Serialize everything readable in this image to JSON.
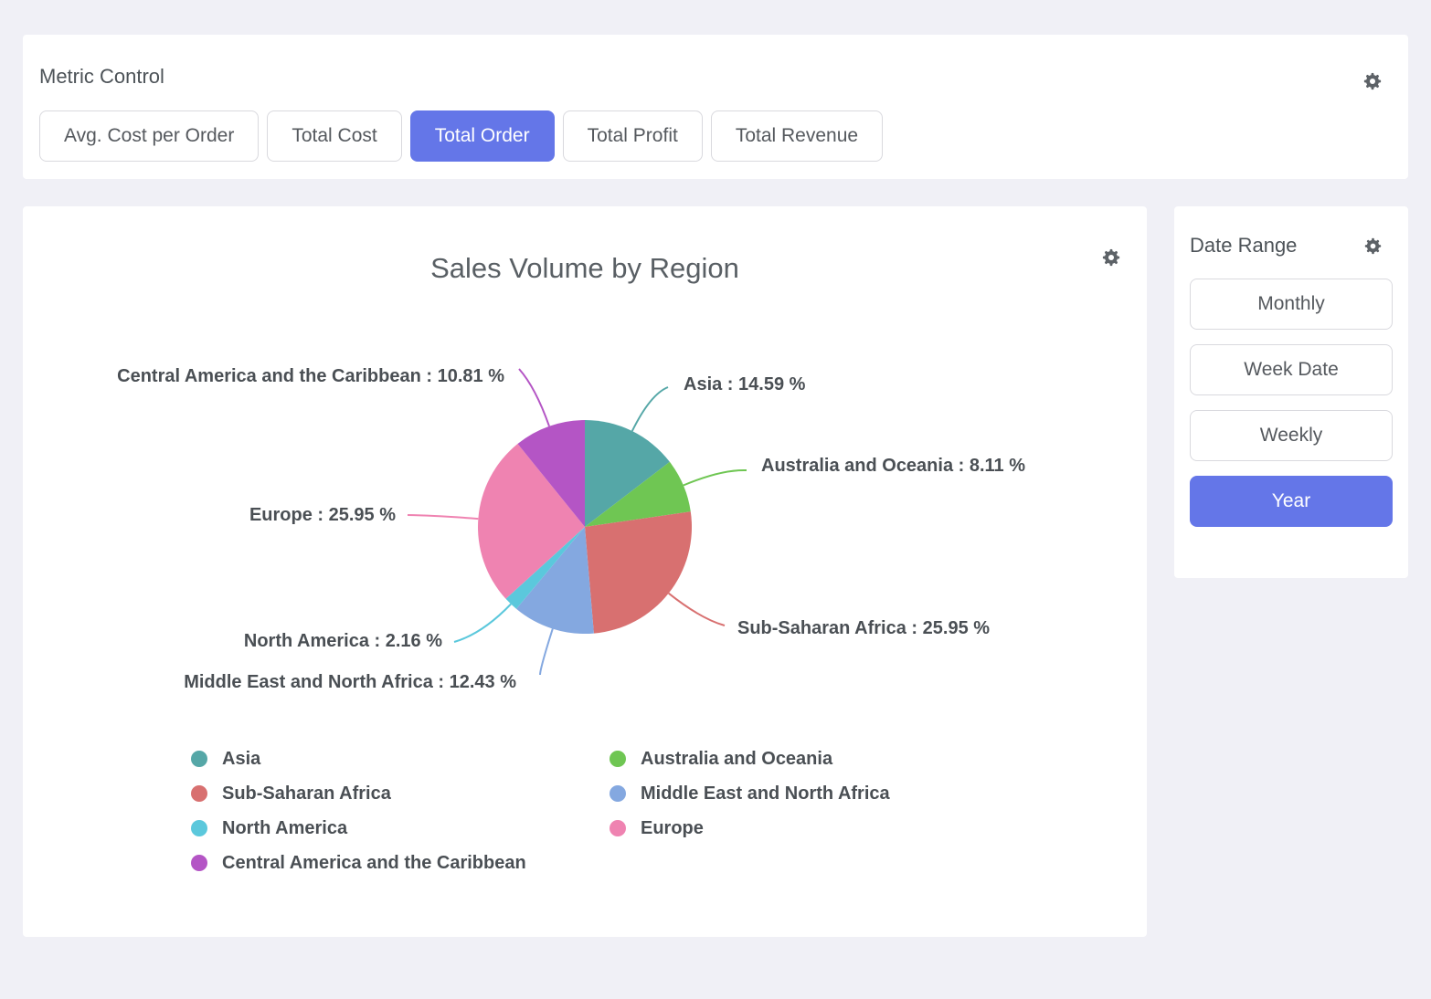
{
  "theme": {
    "accent": "#6476e8",
    "page_bg": "#f0f0f6",
    "panel_bg": "#ffffff",
    "text": "#55595e"
  },
  "metric_control": {
    "title": "Metric Control",
    "settings_icon": "gear-icon",
    "buttons": [
      {
        "label": "Avg. Cost per Order",
        "selected": false
      },
      {
        "label": "Total Cost",
        "selected": false
      },
      {
        "label": "Total Order",
        "selected": true
      },
      {
        "label": "Total Profit",
        "selected": false
      },
      {
        "label": "Total Revenue",
        "selected": false
      }
    ]
  },
  "date_range": {
    "title": "Date Range",
    "settings_icon": "gear-icon",
    "buttons": [
      {
        "label": "Monthly",
        "selected": false
      },
      {
        "label": "Week Date",
        "selected": false
      },
      {
        "label": "Weekly",
        "selected": false
      },
      {
        "label": "Year",
        "selected": true
      }
    ]
  },
  "chart_panel": {
    "settings_icon": "gear-icon"
  },
  "chart_data": {
    "type": "pie",
    "title": "Sales Volume by Region",
    "unit": "%",
    "label_format": "{name} : {value} %",
    "start_angle_deg": 0,
    "direction": "clockwise",
    "series": [
      {
        "name": "Asia",
        "value": 14.59,
        "color": "#55a7a7"
      },
      {
        "name": "Australia and Oceania",
        "value": 8.11,
        "color": "#6fc653"
      },
      {
        "name": "Sub-Saharan Africa",
        "value": 25.95,
        "color": "#d87070"
      },
      {
        "name": "Middle East and North Africa",
        "value": 12.43,
        "color": "#84a8e0"
      },
      {
        "name": "North America",
        "value": 2.16,
        "color": "#5bc8dc"
      },
      {
        "name": "Europe",
        "value": 25.95,
        "color": "#ef83b1"
      },
      {
        "name": "Central America and the Caribbean",
        "value": 10.81,
        "color": "#b455c5"
      }
    ],
    "legend": {
      "position": "bottom",
      "columns": 2,
      "order": [
        "Asia",
        "Australia and Oceania",
        "Sub-Saharan Africa",
        "Middle East and North Africa",
        "North America",
        "Europe",
        "Central America and the Caribbean"
      ]
    }
  }
}
